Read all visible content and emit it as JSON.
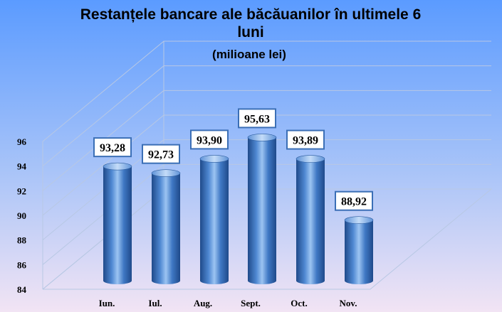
{
  "chart_data": {
    "type": "bar",
    "title_lines": [
      "Restanțele bancare ale băcăuanilor în ultimele 6",
      "luni"
    ],
    "subtitle": "(milioane lei)",
    "categories": [
      "Iun.",
      "Iul.",
      "Aug.",
      "Sept.",
      "Oct.",
      "Nov."
    ],
    "values": [
      93.28,
      92.73,
      93.9,
      95.63,
      93.89,
      88.92
    ],
    "data_labels": [
      "93,28",
      "92,73",
      "93,90",
      "95,63",
      "93,89",
      "88,92"
    ],
    "y_ticks": [
      "84",
      "86",
      "88",
      "90",
      "92",
      "94",
      "96"
    ],
    "ylim": [
      84,
      96
    ],
    "grid": true,
    "legend": "none",
    "colors": {
      "background_top": "#5b9bff",
      "background_bottom": "#f2e4f4",
      "bar": "#3f78c4",
      "bar_highlight": "#9cc4f2",
      "bar_shadow": "#1f4a8a",
      "label_border": "#3b6fb6"
    }
  }
}
